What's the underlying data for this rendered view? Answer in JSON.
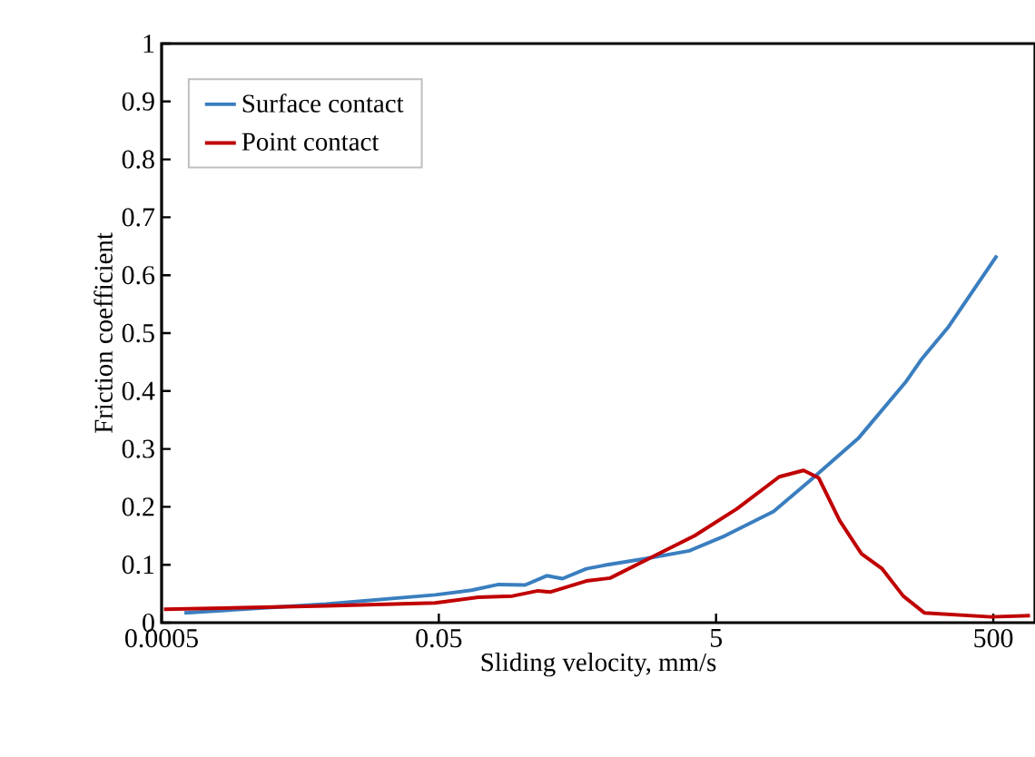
{
  "chart_data": {
    "type": "line",
    "xlabel": "Sliding velocity, mm/s",
    "ylabel": "Friction coefficient",
    "log": "x",
    "xlim": [
      0.0005,
      1000
    ],
    "xticks": [
      0.0005,
      0.05,
      5,
      500
    ],
    "ylim": [
      0,
      1
    ],
    "yticks": [
      0,
      0.1,
      0.2,
      0.3,
      0.4,
      0.5,
      0.6,
      0.7,
      0.8,
      0.9,
      1
    ],
    "legend": "top left",
    "grid": false,
    "marker": "none",
    "line_style": "solid",
    "series": [
      {
        "name": "Surface contact",
        "color": "#3a7ebf",
        "x": [
          0.00073,
          0.0077,
          0.047,
          0.086,
          0.135,
          0.21,
          0.3,
          0.39,
          0.58,
          0.78,
          1.58,
          3.2,
          5.8,
          13,
          23.7,
          53,
          118,
          151,
          238,
          531
        ],
        "values": [
          0.017,
          0.032,
          0.048,
          0.056,
          0.066,
          0.065,
          0.081,
          0.076,
          0.093,
          0.099,
          0.111,
          0.124,
          0.15,
          0.192,
          0.245,
          0.318,
          0.417,
          0.454,
          0.511,
          0.634
        ]
      },
      {
        "name": "Point contact",
        "color": "#c00000",
        "x": [
          0.00052,
          0.0077,
          0.047,
          0.096,
          0.17,
          0.26,
          0.32,
          0.58,
          0.86,
          1.75,
          3.5,
          7.1,
          14.3,
          21.4,
          27.5,
          39,
          56,
          79,
          112,
          159,
          481,
          920
        ],
        "values": [
          0.023,
          0.029,
          0.034,
          0.044,
          0.046,
          0.055,
          0.053,
          0.072,
          0.077,
          0.114,
          0.15,
          0.197,
          0.252,
          0.263,
          0.25,
          0.176,
          0.119,
          0.093,
          0.046,
          0.017,
          0.01,
          0.012
        ]
      }
    ]
  }
}
